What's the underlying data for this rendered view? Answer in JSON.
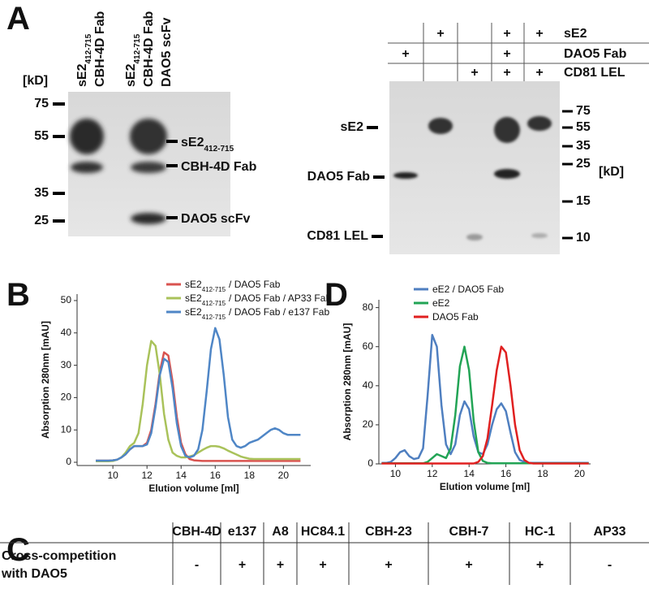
{
  "panel_a": {
    "label": "A",
    "gel_1": {
      "unit": "[kD]",
      "lanes": [
        {
          "text": "sE2",
          "sub": "412-715",
          "lines": [
            "CBH-4D Fab"
          ]
        },
        {
          "text": "sE2",
          "sub": "412-715",
          "lines": [
            "CBH-4D Fab",
            "DAO5 scFv"
          ]
        }
      ],
      "markers": [
        75,
        55,
        35,
        25
      ],
      "band_labels": [
        {
          "text": "sE2",
          "sub": "412-715"
        },
        {
          "text": "CBH-4D Fab"
        },
        {
          "text": "DAO5 scFv"
        }
      ]
    },
    "gel_2": {
      "unit": "[kD]",
      "rows": [
        {
          "label": "sE2",
          "cells": [
            null,
            "+",
            null,
            "+",
            "+"
          ]
        },
        {
          "label": "DAO5 Fab",
          "cells": [
            "+",
            null,
            null,
            "+",
            null
          ]
        },
        {
          "label": "CD81 LEL",
          "cells": [
            null,
            null,
            "+",
            "+",
            "+"
          ]
        }
      ],
      "markers": [
        75,
        55,
        35,
        25,
        15,
        10
      ],
      "band_labels": [
        "sE2",
        "DAO5 Fab",
        "CD81 LEL"
      ]
    }
  },
  "chart_data": [
    {
      "type": "line",
      "panel_label": "B",
      "xlabel": "Elution volume [ml]",
      "ylabel": "Absorption 280nm [mAU]",
      "x": [
        9,
        9.25,
        9.5,
        9.75,
        10,
        10.25,
        10.5,
        10.75,
        11,
        11.25,
        11.5,
        11.75,
        12,
        12.25,
        12.5,
        12.75,
        13,
        13.25,
        13.5,
        13.75,
        14,
        14.25,
        14.5,
        14.75,
        15,
        15.25,
        15.5,
        15.75,
        16,
        16.25,
        16.5,
        16.75,
        17,
        17.25,
        17.5,
        17.75,
        18,
        18.25,
        18.5,
        18.75,
        19,
        19.25,
        19.5,
        19.75,
        20,
        20.25,
        20.5,
        20.75,
        21
      ],
      "xlim": [
        7.9,
        21.6
      ],
      "xticks": [
        10,
        12,
        14,
        16,
        18,
        20
      ],
      "ylim": [
        -1,
        52
      ],
      "yticks": [
        0,
        10,
        20,
        30,
        40,
        50
      ],
      "series": [
        {
          "name": [
            "sE2",
            "412-715",
            "/ DAO5 Fab"
          ],
          "color": "#d9534f",
          "values": [
            0.5,
            0.5,
            0.5,
            0.5,
            0.6,
            0.8,
            1.5,
            2.5,
            4,
            5,
            5,
            5,
            6,
            10,
            18,
            28,
            34,
            33,
            25,
            14,
            6,
            2.5,
            1,
            0.6,
            0.5,
            0.4,
            0.4,
            0.4,
            0.4,
            0.4,
            0.4,
            0.4,
            0.4,
            0.4,
            0.4,
            0.4,
            0.4,
            0.4,
            0.4,
            0.4,
            0.4,
            0.4,
            0.4,
            0.4,
            0.4,
            0.4,
            0.4,
            0.4,
            0.4
          ]
        },
        {
          "name": [
            "sE2",
            "412-715",
            "/ DAO5 Fab / AP33 Fab"
          ],
          "color": "#a9c25a",
          "values": [
            0.3,
            0.3,
            0.3,
            0.3,
            0.4,
            0.8,
            1.5,
            3,
            5,
            6,
            9,
            18,
            30,
            37.5,
            36,
            27,
            15,
            7,
            3,
            2,
            1.5,
            1.5,
            1.8,
            2.2,
            3,
            3.8,
            4.5,
            5,
            5,
            4.8,
            4.3,
            3.6,
            3,
            2.4,
            1.8,
            1.4,
            1.1,
            1,
            1,
            1,
            1,
            1,
            1,
            1,
            1,
            1,
            1,
            1,
            1
          ]
        },
        {
          "name": [
            "sE2",
            "412-715",
            "/ DAO5 Fab / e137 Fab"
          ],
          "color": "#4f86c6",
          "values": [
            0.5,
            0.5,
            0.5,
            0.5,
            0.6,
            0.8,
            1.5,
            2.5,
            4,
            5,
            5,
            5,
            5.5,
            9,
            17,
            27,
            32,
            31,
            23,
            12,
            5,
            2,
            1.5,
            2,
            4,
            10,
            22,
            35,
            41.5,
            38,
            27,
            14,
            7,
            5,
            4.5,
            5,
            6,
            6.5,
            7,
            8,
            9,
            10,
            10.5,
            10,
            9,
            8.5,
            8.5,
            8.5,
            8.5
          ]
        }
      ]
    },
    {
      "type": "line",
      "panel_label": "D",
      "xlabel": "Elution volume [ml]",
      "ylabel": "Absorption 280nm [mAU]",
      "x": [
        9.25,
        9.5,
        9.75,
        10,
        10.25,
        10.5,
        10.75,
        11,
        11.25,
        11.5,
        11.75,
        12,
        12.25,
        12.5,
        12.75,
        13,
        13.25,
        13.5,
        13.75,
        14,
        14.25,
        14.5,
        14.75,
        15,
        15.25,
        15.5,
        15.75,
        16,
        16.25,
        16.5,
        16.75,
        17,
        17.25,
        17.5,
        17.75,
        18,
        18.25,
        18.5,
        18.75,
        19,
        19.25,
        19.5,
        19.75,
        20,
        20.25,
        20.5
      ],
      "xlim": [
        9.1,
        20.6
      ],
      "xticks": [
        10,
        12,
        14,
        16,
        18,
        20
      ],
      "ylim": [
        0,
        84
      ],
      "yticks": [
        0,
        20,
        40,
        60,
        80
      ],
      "series": [
        {
          "name": "eE2 / DAO5 Fab",
          "color": "#4f7fc0",
          "values": [
            0.5,
            0.5,
            1,
            3,
            6,
            7,
            4,
            2.5,
            3,
            8,
            35,
            66,
            60,
            30,
            10,
            5,
            10,
            25,
            32,
            28,
            14,
            6,
            5,
            10,
            20,
            28,
            31,
            27,
            16,
            6,
            2,
            1,
            0.5,
            0.5,
            0.5,
            0.5,
            0.5,
            0.5,
            0.5,
            0.5,
            0.5,
            0.5,
            0.5,
            0.5,
            0.5,
            0.5
          ]
        },
        {
          "name": "eE2",
          "color": "#22a455",
          "values": [
            0.3,
            0.3,
            0.3,
            0.3,
            0.3,
            0.3,
            0.3,
            0.3,
            0.3,
            0.3,
            1,
            3,
            5,
            4,
            3,
            8,
            25,
            50,
            60,
            48,
            22,
            6,
            1.5,
            0.5,
            0.3,
            0.3,
            0.3,
            0.3,
            0.3,
            0.3,
            0.3,
            0.3,
            0.3,
            0.3,
            0.3,
            0.3,
            0.3,
            0.3,
            0.3,
            0.3,
            0.3,
            0.3,
            0.3,
            0.3,
            0.3,
            0.3
          ]
        },
        {
          "name": "DAO5 Fab",
          "color": "#e02020",
          "values": [
            0.2,
            0.2,
            0.2,
            0.2,
            0.2,
            0.2,
            0.2,
            0.2,
            0.2,
            0.2,
            0.2,
            0.2,
            0.2,
            0.2,
            0.2,
            0.2,
            0.2,
            0.2,
            0.2,
            0.2,
            0.2,
            1,
            4,
            13,
            30,
            48,
            60,
            57,
            40,
            20,
            7,
            2,
            0.5,
            0.2,
            0.2,
            0.2,
            0.2,
            0.2,
            0.2,
            0.2,
            0.2,
            0.2,
            0.2,
            0.2,
            0.2,
            0.2
          ]
        }
      ]
    }
  ],
  "panel_c": {
    "label": "C",
    "table": {
      "header": [
        null,
        "CBH-4D",
        "e137",
        "A8",
        "HC84.1",
        "CBH-23",
        "CBH-7",
        "HC-1",
        "AP33"
      ],
      "rows": [
        [
          [
            "Cross-competition",
            "with DAO5"
          ],
          "-",
          "+",
          "+",
          "+",
          "+",
          "+",
          "+",
          "-"
        ]
      ]
    }
  }
}
